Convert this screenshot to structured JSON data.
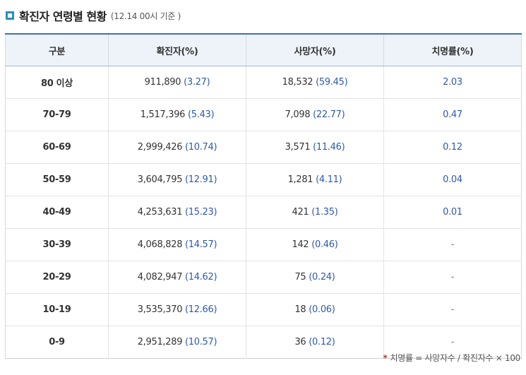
{
  "title": {
    "main": "확진자 연령별 현황",
    "sub": "(12.14 00시 기준 )"
  },
  "table": {
    "headers": [
      "구분",
      "확진자(%)",
      "사망자(%)",
      "치명률(%)"
    ],
    "rows": [
      {
        "group": "80 이상",
        "cases": "911,890",
        "cases_pct": "(3.27)",
        "deaths": "18,532",
        "deaths_pct": "(59.45)",
        "fatality": "2.03"
      },
      {
        "group": "70-79",
        "cases": "1,517,396",
        "cases_pct": "(5.43)",
        "deaths": "7,098",
        "deaths_pct": "(22.77)",
        "fatality": "0.47"
      },
      {
        "group": "60-69",
        "cases": "2,999,426",
        "cases_pct": "(10.74)",
        "deaths": "3,571",
        "deaths_pct": "(11.46)",
        "fatality": "0.12"
      },
      {
        "group": "50-59",
        "cases": "3,604,795",
        "cases_pct": "(12.91)",
        "deaths": "1,281",
        "deaths_pct": "(4.11)",
        "fatality": "0.04"
      },
      {
        "group": "40-49",
        "cases": "4,253,631",
        "cases_pct": "(15.23)",
        "deaths": "421",
        "deaths_pct": "(1.35)",
        "fatality": "0.01"
      },
      {
        "group": "30-39",
        "cases": "4,068,828",
        "cases_pct": "(14.57)",
        "deaths": "142",
        "deaths_pct": "(0.46)",
        "fatality": "-"
      },
      {
        "group": "20-29",
        "cases": "4,082,947",
        "cases_pct": "(14.62)",
        "deaths": "75",
        "deaths_pct": "(0.24)",
        "fatality": "-"
      },
      {
        "group": "10-19",
        "cases": "3,535,370",
        "cases_pct": "(12.66)",
        "deaths": "18",
        "deaths_pct": "(0.06)",
        "fatality": "-"
      },
      {
        "group": "0-9",
        "cases": "2,951,289",
        "cases_pct": "(10.57)",
        "deaths": "36",
        "deaths_pct": "(0.12)",
        "fatality": "-"
      }
    ]
  },
  "footnote": {
    "marker": "*",
    "text": "치명률 = 사망자수 / 확진자수 × 100"
  },
  "colors": {
    "accent": "#2a8fbd",
    "header_border": "#3f6fb2",
    "header_bg": "#eef3fa",
    "value_blue": "#2f5aa8",
    "footnote_star": "#d0312d"
  }
}
